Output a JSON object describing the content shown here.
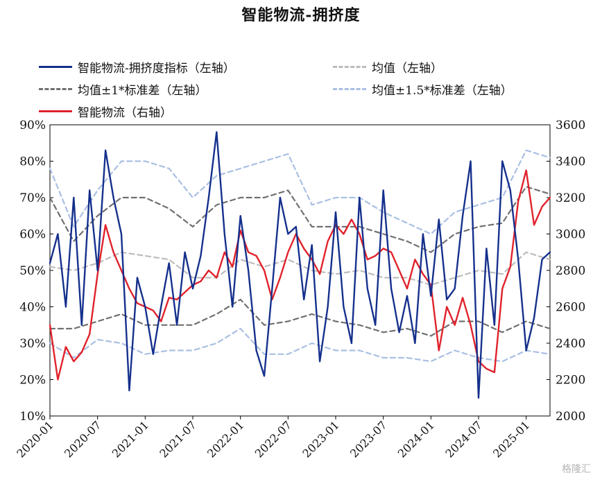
{
  "title": "智能物流-拥挤度",
  "watermark": "格隆汇",
  "legend": [
    {
      "key": "crowd",
      "label": "智能物流-拥挤度指标（左轴）",
      "color": "#15308c",
      "dash": "solid"
    },
    {
      "key": "mean",
      "label": "均值（左轴）",
      "color": "#bcbcbc",
      "dash": "dashed"
    },
    {
      "key": "sd1",
      "label": "均值±1*标准差（左轴）",
      "color": "#707070",
      "dash": "dashed"
    },
    {
      "key": "sd15",
      "label": "均值±1.5*标准差（左轴）",
      "color": "#a9bfe3",
      "dash": "dashed"
    },
    {
      "key": "index",
      "label": "智能物流（右轴）",
      "color": "#e0222b",
      "dash": "solid"
    }
  ],
  "chart_data": {
    "type": "line",
    "title": "智能物流-拥挤度",
    "x_ticks": [
      "2020-01",
      "2020-07",
      "2021-01",
      "2021-07",
      "2022-01",
      "2022-07",
      "2023-01",
      "2023-07",
      "2024-01",
      "2024-07",
      "2025-01"
    ],
    "x_range": [
      "2020-01",
      "2025-04"
    ],
    "y_left": {
      "range": [
        10,
        90
      ],
      "ticks": [
        "10%",
        "20%",
        "30%",
        "40%",
        "50%",
        "60%",
        "70%",
        "80%",
        "90%"
      ]
    },
    "y_right": {
      "range": [
        2000,
        3600
      ],
      "ticks": [
        "2000",
        "2200",
        "2400",
        "2600",
        "2800",
        "3000",
        "3200",
        "3400",
        "3600"
      ]
    },
    "grid": false,
    "legend_position": "top",
    "series": [
      {
        "name": "智能物流-拥挤度指标（左轴）",
        "axis": "left",
        "x": [
          "2020-01",
          "2020-02",
          "2020-03",
          "2020-04",
          "2020-05",
          "2020-06",
          "2020-07",
          "2020-08",
          "2020-09",
          "2020-10",
          "2020-11",
          "2020-12",
          "2021-01",
          "2021-02",
          "2021-03",
          "2021-04",
          "2021-05",
          "2021-06",
          "2021-07",
          "2021-08",
          "2021-09",
          "2021-10",
          "2021-11",
          "2021-12",
          "2022-01",
          "2022-02",
          "2022-03",
          "2022-04",
          "2022-05",
          "2022-06",
          "2022-07",
          "2022-08",
          "2022-09",
          "2022-10",
          "2022-11",
          "2022-12",
          "2023-01",
          "2023-02",
          "2023-03",
          "2023-04",
          "2023-05",
          "2023-06",
          "2023-07",
          "2023-08",
          "2023-09",
          "2023-10",
          "2023-11",
          "2023-12",
          "2024-01",
          "2024-02",
          "2024-03",
          "2024-04",
          "2024-05",
          "2024-06",
          "2024-07",
          "2024-08",
          "2024-09",
          "2024-10",
          "2024-11",
          "2024-12",
          "2025-01",
          "2025-02",
          "2025-03",
          "2025-04"
        ],
        "values": [
          52,
          60,
          40,
          70,
          35,
          72,
          50,
          83,
          70,
          60,
          17,
          48,
          40,
          27,
          40,
          52,
          35,
          55,
          45,
          54,
          70,
          88,
          60,
          40,
          65,
          50,
          28,
          21,
          45,
          70,
          60,
          62,
          42,
          57,
          25,
          40,
          66,
          40,
          30,
          70,
          45,
          35,
          72,
          45,
          33,
          43,
          30,
          60,
          43,
          64,
          42,
          45,
          65,
          80,
          15,
          56,
          35,
          80,
          72,
          53,
          28,
          37,
          53,
          55
        ]
      },
      {
        "name": "智能物流（右轴）",
        "axis": "right",
        "x": [
          "2020-01",
          "2020-02",
          "2020-03",
          "2020-04",
          "2020-05",
          "2020-06",
          "2020-07",
          "2020-08",
          "2020-09",
          "2020-10",
          "2020-11",
          "2020-12",
          "2021-01",
          "2021-02",
          "2021-03",
          "2021-04",
          "2021-05",
          "2021-06",
          "2021-07",
          "2021-08",
          "2021-09",
          "2021-10",
          "2021-11",
          "2021-12",
          "2022-01",
          "2022-02",
          "2022-03",
          "2022-04",
          "2022-05",
          "2022-06",
          "2022-07",
          "2022-08",
          "2022-09",
          "2022-10",
          "2022-11",
          "2022-12",
          "2023-01",
          "2023-02",
          "2023-03",
          "2023-04",
          "2023-05",
          "2023-06",
          "2023-07",
          "2023-08",
          "2023-09",
          "2023-10",
          "2023-11",
          "2023-12",
          "2024-01",
          "2024-02",
          "2024-03",
          "2024-04",
          "2024-05",
          "2024-06",
          "2024-07",
          "2024-08",
          "2024-09",
          "2024-10",
          "2024-11",
          "2024-12",
          "2025-01",
          "2025-02",
          "2025-03",
          "2025-04"
        ],
        "values": [
          2500,
          2200,
          2380,
          2300,
          2350,
          2450,
          2780,
          3050,
          2900,
          2800,
          2700,
          2620,
          2600,
          2580,
          2520,
          2650,
          2640,
          2680,
          2720,
          2740,
          2800,
          2760,
          2900,
          2820,
          3020,
          2900,
          2880,
          2800,
          2640,
          2760,
          2900,
          3000,
          2920,
          2860,
          2780,
          2960,
          3050,
          3000,
          3080,
          3000,
          2860,
          2880,
          2920,
          2900,
          2800,
          2700,
          2860,
          2780,
          2720,
          2360,
          2600,
          2500,
          2650,
          2500,
          2300,
          2260,
          2240,
          2700,
          2820,
          3180,
          3350,
          3050,
          3150,
          3200
        ]
      },
      {
        "name": "均值（左轴）",
        "axis": "left",
        "x": [
          "2020-01",
          "2020-04",
          "2020-07",
          "2020-10",
          "2021-01",
          "2021-04",
          "2021-07",
          "2021-10",
          "2022-01",
          "2022-04",
          "2022-07",
          "2022-10",
          "2023-01",
          "2023-04",
          "2023-07",
          "2023-10",
          "2024-01",
          "2024-04",
          "2024-07",
          "2024-10",
          "2025-01",
          "2025-04"
        ],
        "values": [
          51,
          50,
          52,
          55,
          54,
          53,
          48,
          48,
          53,
          51,
          53,
          50,
          49,
          50,
          48,
          48,
          46,
          48,
          50,
          49,
          55,
          53
        ]
      },
      {
        "name": "均值+1*标准差（左轴）",
        "axis": "left",
        "x": [
          "2020-01",
          "2020-04",
          "2020-07",
          "2020-10",
          "2021-01",
          "2021-04",
          "2021-07",
          "2021-10",
          "2022-01",
          "2022-04",
          "2022-07",
          "2022-10",
          "2023-01",
          "2023-04",
          "2023-07",
          "2023-10",
          "2024-01",
          "2024-04",
          "2024-07",
          "2024-10",
          "2025-01",
          "2025-04"
        ],
        "values": [
          70,
          58,
          65,
          70,
          70,
          67,
          62,
          68,
          70,
          70,
          72,
          62,
          62,
          62,
          60,
          58,
          55,
          60,
          62,
          63,
          73,
          71
        ]
      },
      {
        "name": "均值-1*标准差（左轴）",
        "axis": "left",
        "x": [
          "2020-01",
          "2020-04",
          "2020-07",
          "2020-10",
          "2021-01",
          "2021-04",
          "2021-07",
          "2021-10",
          "2022-01",
          "2022-04",
          "2022-07",
          "2022-10",
          "2023-01",
          "2023-04",
          "2023-07",
          "2023-10",
          "2024-01",
          "2024-04",
          "2024-07",
          "2024-10",
          "2025-01",
          "2025-04"
        ],
        "values": [
          34,
          34,
          36,
          38,
          35,
          35,
          35,
          38,
          42,
          35,
          36,
          38,
          36,
          35,
          33,
          34,
          32,
          36,
          36,
          33,
          36,
          34
        ]
      },
      {
        "name": "均值+1.5*标准差（左轴）",
        "axis": "left",
        "x": [
          "2020-01",
          "2020-04",
          "2020-07",
          "2020-10",
          "2021-01",
          "2021-04",
          "2021-07",
          "2021-10",
          "2022-01",
          "2022-04",
          "2022-07",
          "2022-10",
          "2023-01",
          "2023-04",
          "2023-07",
          "2023-10",
          "2024-01",
          "2024-04",
          "2024-07",
          "2024-10",
          "2025-01",
          "2025-04"
        ],
        "values": [
          78,
          62,
          72,
          80,
          80,
          78,
          70,
          76,
          78,
          80,
          82,
          68,
          70,
          70,
          66,
          63,
          60,
          66,
          68,
          70,
          83,
          81
        ]
      },
      {
        "name": "均值-1.5*标准差（左轴）",
        "axis": "left",
        "x": [
          "2020-01",
          "2020-04",
          "2020-07",
          "2020-10",
          "2021-01",
          "2021-04",
          "2021-07",
          "2021-10",
          "2022-01",
          "2022-04",
          "2022-07",
          "2022-10",
          "2023-01",
          "2023-04",
          "2023-07",
          "2023-10",
          "2024-01",
          "2024-04",
          "2024-07",
          "2024-10",
          "2025-01",
          "2025-04"
        ],
        "values": [
          30,
          26,
          31,
          30,
          27,
          28,
          28,
          30,
          34,
          27,
          27,
          30,
          28,
          28,
          26,
          26,
          25,
          28,
          26,
          25,
          28,
          27
        ]
      }
    ]
  }
}
